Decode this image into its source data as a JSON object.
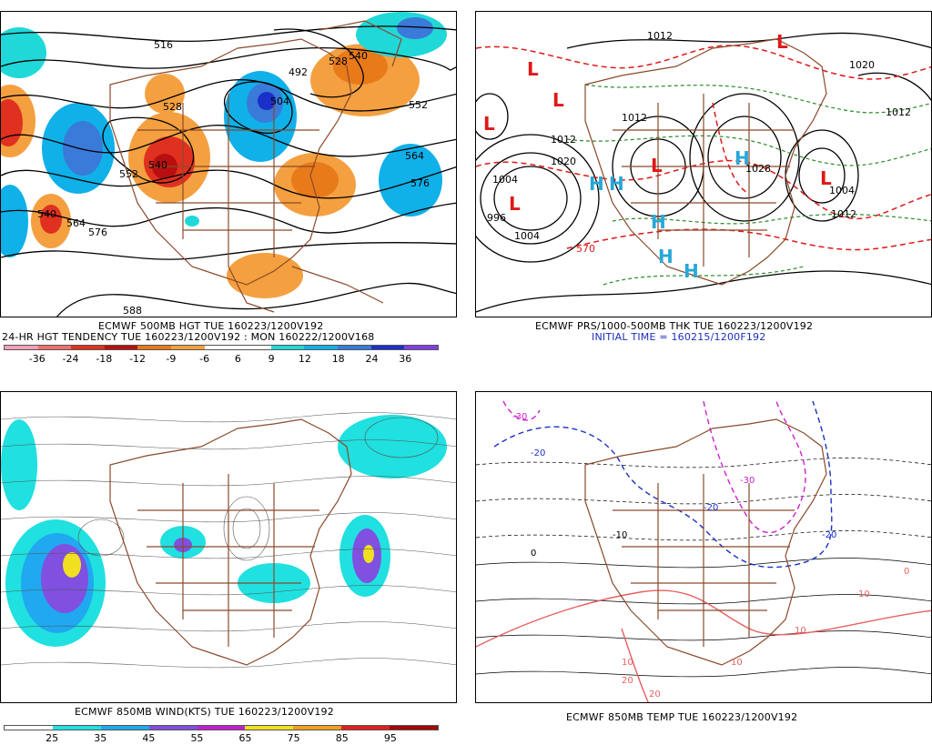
{
  "panels": {
    "p1": {
      "caption1": "ECMWF 500MB HGT TUE 160223/1200V192",
      "caption2": "24-HR HGT TENDENCY TUE 160223/1200V192 : MON 160222/1200V168",
      "scale_colors": [
        "#f4a0b8",
        "#f07070",
        "#e03020",
        "#b81010",
        "#e87a1a",
        "#f4a040",
        "#ffffff",
        "#ffffff",
        "#20d8d8",
        "#10b0e8",
        "#3a7ad8",
        "#1a30c8",
        "#8040e0"
      ],
      "scale_labels": [
        "-36",
        "-24",
        "-18",
        "-12",
        "-9",
        "-6",
        "6",
        "9",
        "12",
        "18",
        "24",
        "36"
      ],
      "contour_labels": [
        "516",
        "492",
        "528",
        "540",
        "552",
        "504",
        "528",
        "540",
        "552",
        "564",
        "576",
        "540",
        "564",
        "576",
        "588"
      ]
    },
    "p2": {
      "caption1": "ECMWF PRS/1000-500MB THK TUE 160223/1200V192",
      "caption2": "INITIAL TIME = 160215/1200F192",
      "pressure_labels": [
        "1012",
        "1012",
        "1020",
        "1004",
        "996",
        "1004",
        "1012",
        "1028",
        "1004",
        "1012",
        "1020",
        "1012",
        "570"
      ],
      "lows": [
        "L",
        "L",
        "L",
        "L",
        "L",
        "L",
        "L"
      ],
      "highs": [
        "H",
        "H",
        "H",
        "H",
        "H",
        "H"
      ]
    },
    "p3": {
      "caption1": "ECMWF 850MB WIND(KTS) TUE 160223/1200V192",
      "scale_colors": [
        "#ffffff",
        "#20e0e0",
        "#20a8f0",
        "#8050e0",
        "#c020d0",
        "#f0e020",
        "#f0a020",
        "#e02020",
        "#a00808"
      ],
      "scale_labels": [
        "25",
        "35",
        "45",
        "55",
        "65",
        "75",
        "85",
        "95"
      ]
    },
    "p4": {
      "caption1": "ECMWF 850MB TEMP TUE 160223/1200V192",
      "temp_labels": [
        "-30",
        "-20",
        "-30",
        "-20",
        "-10",
        "-20",
        "0",
        "10",
        "20",
        "10",
        "10",
        "0",
        "10",
        "20"
      ]
    }
  },
  "colors": {
    "map_outline": "#8b4a2b",
    "contour": "#000000",
    "thickness": "#e01818",
    "thickness_green": "#2a8a2a",
    "cold": "#1a30c8",
    "very_cold": "#d020d0",
    "warm": "#e86060"
  },
  "icons": [
    "map-outline-icon",
    "low-pressure-icon",
    "high-pressure-icon"
  ]
}
